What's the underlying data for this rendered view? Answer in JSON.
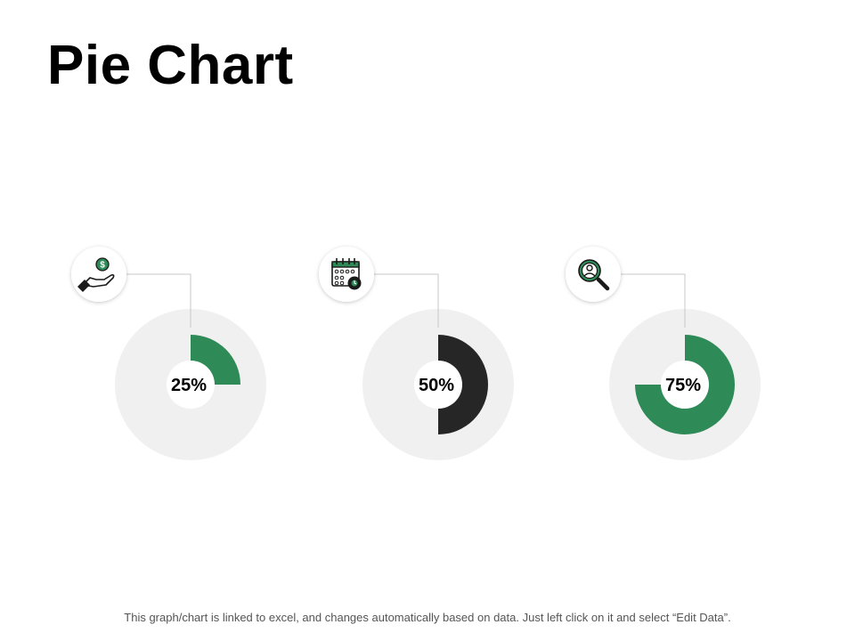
{
  "title": "Pie Chart",
  "footer": "This graph/chart is linked to excel,  and changes automatically based on data. Just left click on it and select “Edit Data”.",
  "colors": {
    "green": "#2e8b57",
    "dark": "#262626",
    "ring": "#f0f0f0"
  },
  "chart_data": [
    {
      "type": "pie",
      "label": "25%",
      "value": 25,
      "color": "#2e8b57",
      "icon": "money-hand-icon"
    },
    {
      "type": "pie",
      "label": "50%",
      "value": 50,
      "color": "#262626",
      "icon": "calendar-clock-icon"
    },
    {
      "type": "pie",
      "label": "75%",
      "value": 75,
      "color": "#2e8b57",
      "icon": "search-person-icon"
    }
  ]
}
